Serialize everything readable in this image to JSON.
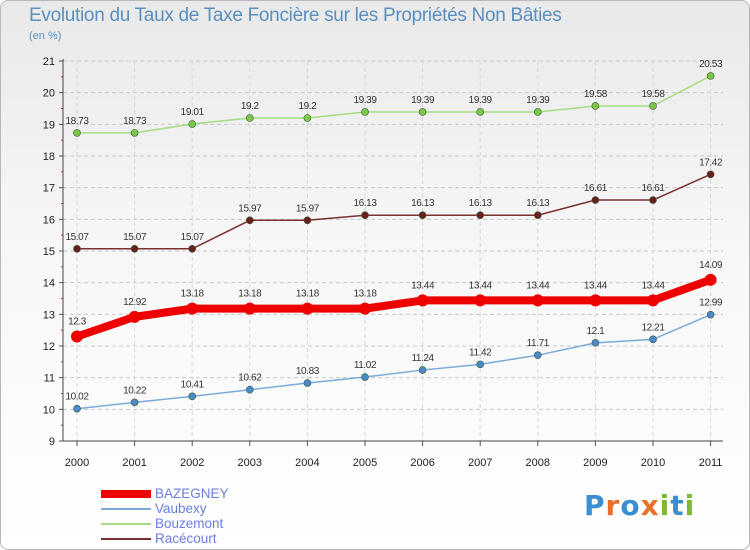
{
  "title": "Evolution du Taux de Taxe Foncière sur les Propriétés Non Bâties",
  "unit_label": "(en %)",
  "logo": {
    "letters": [
      "P",
      "r",
      "o",
      "x",
      "i",
      "t",
      "i"
    ],
    "colors": [
      "#3a8fd0",
      "#e8702a",
      "#3a8fd0",
      "#e8702a",
      "#7fb832",
      "#3a8fd0",
      "#7fb832"
    ]
  },
  "chart_data": {
    "type": "line",
    "title": "Evolution du Taux de Taxe Foncière sur les Propriétés Non Bâties",
    "ylabel": "(en %)",
    "xlabel": "",
    "x": [
      2000,
      2001,
      2002,
      2003,
      2004,
      2005,
      2006,
      2007,
      2008,
      2009,
      2010,
      2011
    ],
    "x_tick_labels": [
      "2000",
      "2001",
      "2002",
      "2003",
      "2004",
      "2005",
      "2006",
      "2007",
      "2008",
      "2009",
      "2010",
      "2011"
    ],
    "ylim": [
      9,
      21
    ],
    "y_ticks": [
      9,
      10,
      11,
      12,
      13,
      14,
      15,
      16,
      17,
      18,
      19,
      20,
      21
    ],
    "y_tick_labels": [
      "9",
      "10",
      "11",
      "12",
      "13",
      "14",
      "15",
      "16",
      "17",
      "18",
      "19",
      "20",
      "21"
    ],
    "grid": true,
    "legend_position": "bottom-left",
    "series": [
      {
        "name": "BAZEGNEY",
        "color": "#ee0000",
        "point_color": "#ee0000",
        "width": 8,
        "radius": 6,
        "values": [
          12.3,
          12.92,
          13.18,
          13.18,
          13.18,
          13.18,
          13.44,
          13.44,
          13.44,
          13.44,
          13.44,
          14.09
        ],
        "labels": [
          "12.3",
          "12.92",
          "13.18",
          "13.18",
          "13.18",
          "13.18",
          "13.44",
          "13.44",
          "13.44",
          "13.44",
          "13.44",
          "14.09"
        ]
      },
      {
        "name": "Vaubexy",
        "color": "#7aaad8",
        "point_color": "#4a8ac8",
        "width": 1.5,
        "radius": 3.5,
        "values": [
          10.02,
          10.22,
          10.41,
          10.62,
          10.83,
          11.02,
          11.24,
          11.42,
          11.71,
          12.1,
          12.21,
          12.99
        ],
        "labels": [
          "10.02",
          "10.22",
          "10.41",
          "10.62",
          "10.83",
          "11.02",
          "11.24",
          "11.42",
          "11.71",
          "12.1",
          "12.21",
          "12.99"
        ]
      },
      {
        "name": "Bouzemont",
        "color": "#a8dc80",
        "point_color": "#7ac845",
        "width": 1.5,
        "radius": 3.5,
        "values": [
          18.73,
          18.73,
          19.01,
          19.2,
          19.2,
          19.39,
          19.39,
          19.39,
          19.39,
          19.58,
          19.58,
          20.53
        ],
        "labels": [
          "18.73",
          "18.73",
          "19.01",
          "19.2",
          "19.2",
          "19.39",
          "19.39",
          "19.39",
          "19.39",
          "19.58",
          "19.58",
          "20.53"
        ]
      },
      {
        "name": "Racécourt",
        "color": "#7a3030",
        "point_color": "#6a1e1e",
        "width": 1.5,
        "radius": 3.5,
        "values": [
          15.07,
          15.07,
          15.07,
          15.97,
          15.97,
          16.13,
          16.13,
          16.13,
          16.13,
          16.61,
          16.61,
          17.42
        ],
        "labels": [
          "15.07",
          "15.07",
          "15.07",
          "15.97",
          "15.97",
          "16.13",
          "16.13",
          "16.13",
          "16.13",
          "16.61",
          "16.61",
          "17.42"
        ]
      }
    ]
  }
}
